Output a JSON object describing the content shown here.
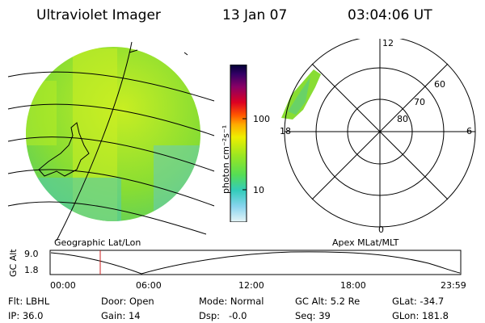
{
  "header": {
    "title": "Ultraviolet Imager",
    "date": "13 Jan 07",
    "time": "03:04:06 UT"
  },
  "geo_panel": {
    "label": "Geographic Lat/Lon"
  },
  "colorbar": {
    "unit_label": "photon cm⁻²s⁻¹",
    "ticks": [
      "100",
      "10"
    ],
    "colors": [
      "#000033",
      "#330066",
      "#660099",
      "#990066",
      "#cc0033",
      "#ee3300",
      "#ff7700",
      "#ffbb00",
      "#eeee00",
      "#aaee22",
      "#66dd44",
      "#33ccbb",
      "#66ccee",
      "#aaddee",
      "#e0f0f4"
    ]
  },
  "polar_panel": {
    "label": "Apex MLat/MLT",
    "mlt_labels": [
      "12",
      "18",
      "6",
      "0"
    ],
    "mlat_labels": [
      "60",
      "70",
      "80"
    ]
  },
  "altitude_plot": {
    "ylabel": "GC Alt",
    "yticks": [
      "9.0",
      "1.8"
    ],
    "xticks": [
      "00:00",
      "06:00",
      "12:00",
      "18:00",
      "23:59"
    ]
  },
  "info": {
    "row1": [
      "Flt: LBHL",
      "Door: Open",
      "Mode: Normal",
      "GC Alt: 5.2 Re",
      "GLat: -34.7"
    ],
    "row2": [
      "IP: 36.0",
      "Gain: 14",
      "Dsp:   -0.0",
      "Seq: 39",
      "GLon: 181.8"
    ]
  }
}
